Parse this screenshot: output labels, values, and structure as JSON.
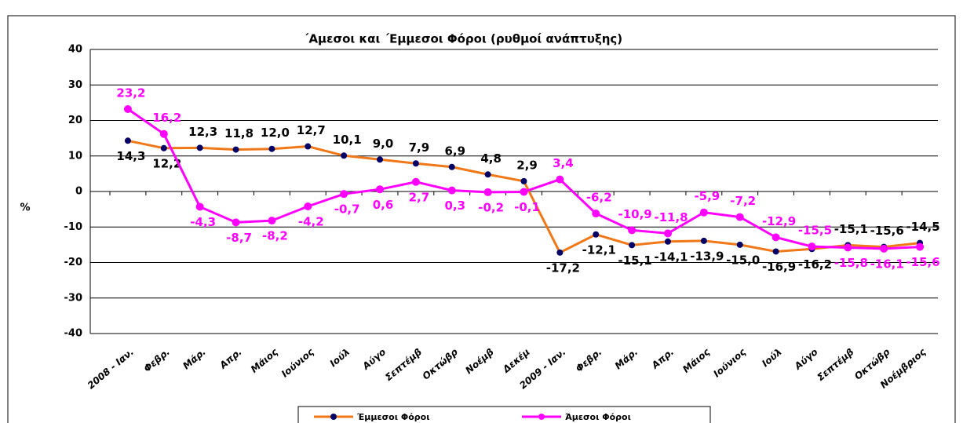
{
  "chart_data": {
    "type": "line",
    "title": "΄Αμεσοι και ΄Εμμεσοι Φόροι (ρυθμοί ανάπτυξης)",
    "y_label": "%",
    "categories": [
      "2008 - Ιαν.",
      "Φεβρ.",
      "Μάρ.",
      "Απρ.",
      "Μάιος",
      "Ιούνιος",
      "Ιούλ",
      "Αύγο",
      "Σεπτέμβ",
      "Οκτώβρ",
      "Νοέμβ",
      "Δεκέμ",
      "2009 - Ιαν.",
      "Φεβρ.",
      "Μάρ.",
      "Απρ.",
      "Μάιος",
      "Ιούνιος",
      "Ιούλ",
      "Αύγο",
      "Σεπτέμβ",
      "Οκτώβρ",
      "Νοέμβριος"
    ],
    "series": [
      {
        "name": "Έμμεσοι Φόροι",
        "color": "#f07818",
        "marker_color": "#000066",
        "label_color": "#000000",
        "values": [
          14.3,
          12.2,
          12.3,
          11.8,
          12.0,
          12.7,
          10.1,
          9.0,
          7.9,
          6.9,
          4.8,
          2.9,
          -17.2,
          -12.1,
          -15.1,
          -14.1,
          -13.9,
          -15.0,
          -16.9,
          -16.2,
          -15.1,
          -15.6,
          -14.5
        ],
        "value_labels": [
          "14,3",
          "12,2",
          "12,3",
          "11,8",
          "12,0",
          "12,7",
          "10,1",
          "9,0",
          "7,9",
          "6,9",
          "4,8",
          "2,9",
          "-17,2",
          "-12,1",
          "-15,1",
          "-14,1",
          "-13,9",
          "-15,0",
          "-16,9",
          "-16,2",
          "-15,1",
          "-15,6",
          "-14,5"
        ]
      },
      {
        "name": "Άμεσοι Φόροι",
        "color": "#ff00ff",
        "marker_color": "#ff00ff",
        "label_color": "#ff00ff",
        "values": [
          23.2,
          16.2,
          -4.3,
          -8.7,
          -8.2,
          -4.2,
          -0.7,
          0.6,
          2.7,
          0.3,
          -0.2,
          -0.1,
          3.4,
          -6.2,
          -10.9,
          -11.8,
          -5.9,
          -7.2,
          -12.9,
          -15.5,
          -15.8,
          -16.1,
          -15.6
        ],
        "value_labels": [
          "23,2",
          "16,2",
          "-4,3",
          "-8,7",
          "-8,2",
          "-4,2",
          "-0,7",
          "0,6",
          "2,7",
          "0,3",
          "-0,2",
          "-0,1",
          "3,4",
          "-6,2",
          "-10,9",
          "-11,8",
          "-5,9",
          "-7,2",
          "-12,9",
          "-15,5",
          "-15,8",
          "-16,1",
          "-15,6"
        ]
      }
    ],
    "ylim": [
      -40,
      40
    ],
    "yticks": [
      -40,
      -30,
      -20,
      -10,
      0,
      10,
      20,
      30,
      40
    ],
    "grid": true
  }
}
